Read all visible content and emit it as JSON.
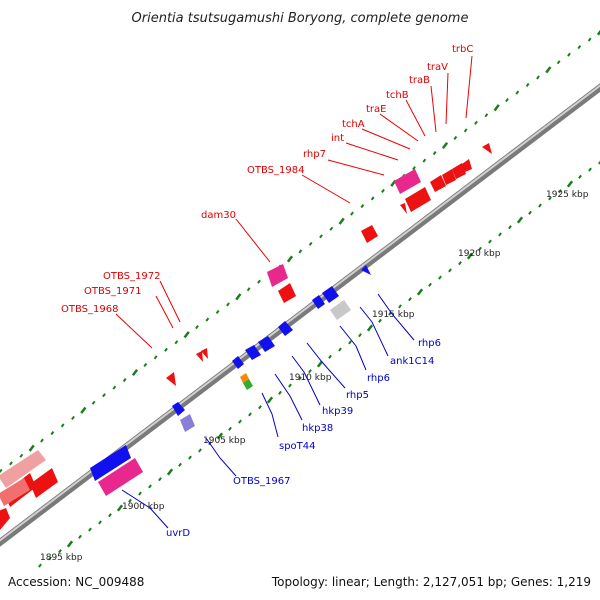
{
  "title": "Orientia tsutsugamushi Boryong, complete genome",
  "footer": {
    "accession": "Accession: NC_009488",
    "topology": "Topology: linear; Length: 2,127,051 bp; Genes: 1,219"
  },
  "colors": {
    "backbone": "#8f8f8f",
    "forward_gene": "#ee0000",
    "reverse_gene": "#0000ee",
    "pink_gene": "#e8288c",
    "tick": "#1a7f1a",
    "forward_label": "#dd0000",
    "reverse_label": "#0000cc"
  },
  "scale_labels": [
    "1895 kbp",
    "1900 kbp",
    "1905 kbp",
    "1910 kbp",
    "1915 kbp",
    "1920 kbp",
    "1925 kbp"
  ],
  "forward_labels": [
    "trbC",
    "traV",
    "traB",
    "tchB",
    "traE",
    "tchA",
    "int",
    "rhp7",
    "OTBS_1984",
    "dam30",
    "OTBS_1972",
    "OTBS_1971",
    "OTBS_1968"
  ],
  "reverse_labels": [
    "rhp6",
    "ank1C14",
    "rhp6",
    "rhp5",
    "hkp39",
    "hkp38",
    "spoT44",
    "OTBS_1967",
    "uvrD"
  ]
}
